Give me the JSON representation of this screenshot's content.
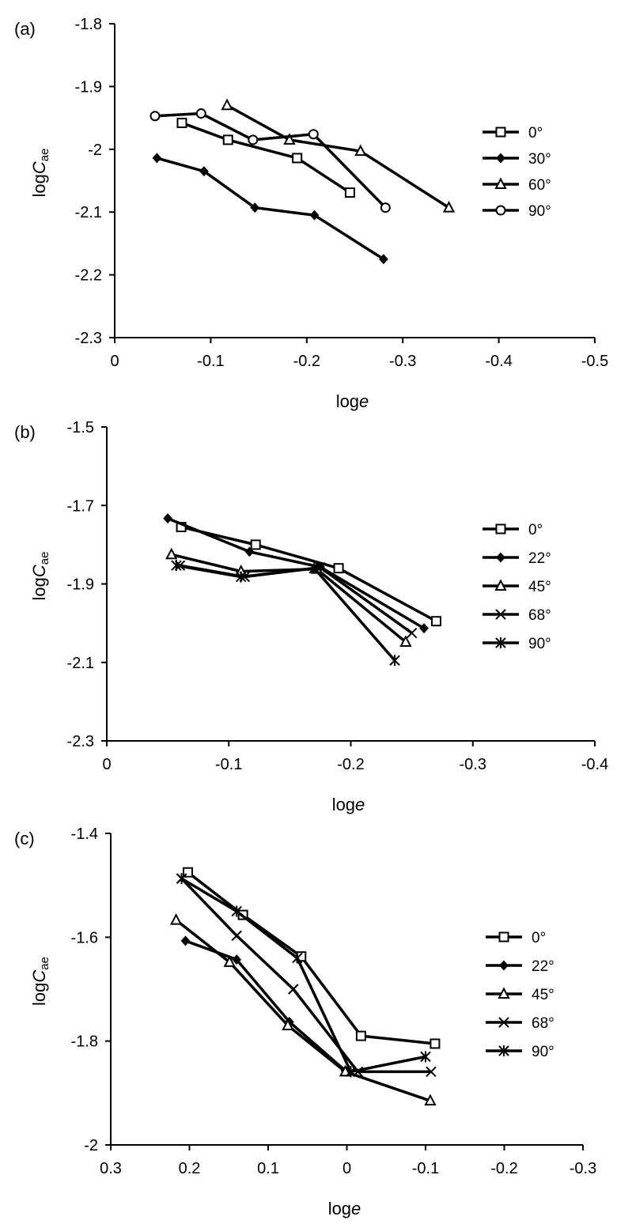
{
  "chart_data": [
    {
      "type": "line",
      "panel_label": "(a)",
      "xlabel": {
        "main": "log",
        "italic": "e"
      },
      "ylabel": {
        "main": "log",
        "italic": "C",
        "sub": "ae"
      },
      "xlim": [
        0,
        -0.5
      ],
      "ylim": [
        -2.3,
        -1.8
      ],
      "x_ticks": [
        0,
        -0.1,
        -0.2,
        -0.3,
        -0.4,
        -0.5
      ],
      "y_ticks": [
        -1.8,
        -1.9,
        -2,
        -2.1,
        -2.2,
        -2.3
      ],
      "x_tick_labels": [
        "0",
        "-0.1",
        "-0.2",
        "-0.3",
        "-0.4",
        "-0.5"
      ],
      "y_tick_labels": [
        "-1.8",
        "-1.9",
        "-2",
        "-2.1",
        "-2.2",
        "-2.3"
      ],
      "grid": false,
      "legend_position": "right",
      "series": [
        {
          "name": "0°",
          "marker": "square",
          "x": [
            -0.07,
            -0.118,
            -0.19,
            -0.245
          ],
          "y": [
            -1.958,
            -1.985,
            -2.014,
            -2.069
          ]
        },
        {
          "name": "30°",
          "marker": "diamond",
          "x": [
            -0.044,
            -0.093,
            -0.146,
            -0.208,
            -0.28
          ],
          "y": [
            -2.014,
            -2.035,
            -2.093,
            -2.105,
            -2.175
          ]
        },
        {
          "name": "60°",
          "marker": "triangle",
          "x": [
            -0.117,
            -0.182,
            -0.256,
            -0.348
          ],
          "y": [
            -1.93,
            -1.985,
            -2.003,
            -2.093
          ]
        },
        {
          "name": "90°",
          "marker": "circle",
          "x": [
            -0.042,
            -0.09,
            -0.144,
            -0.207,
            -0.282
          ],
          "y": [
            -1.947,
            -1.943,
            -1.985,
            -1.976,
            -2.093
          ]
        }
      ]
    },
    {
      "type": "line",
      "panel_label": "(b)",
      "xlabel": {
        "main": "log",
        "italic": "e"
      },
      "ylabel": {
        "main": "log",
        "italic": "C",
        "sub": "ae"
      },
      "xlim": [
        0,
        -0.4
      ],
      "ylim": [
        -2.3,
        -1.5
      ],
      "x_ticks": [
        0,
        -0.1,
        -0.2,
        -0.3,
        -0.4
      ],
      "y_ticks": [
        -1.5,
        -1.7,
        -1.9,
        -2.1,
        -2.3
      ],
      "x_tick_labels": [
        "0",
        "-0.1",
        "-0.2",
        "-0.3",
        "-0.4"
      ],
      "y_tick_labels": [
        "-1.5",
        "-1.7",
        "-1.9",
        "-2.1",
        "-2.3"
      ],
      "grid": false,
      "legend_position": "right",
      "series": [
        {
          "name": "0°",
          "marker": "square",
          "x": [
            -0.061,
            -0.122,
            -0.19,
            -0.27
          ],
          "y": [
            -1.755,
            -1.8,
            -1.86,
            -1.995
          ]
        },
        {
          "name": "22°",
          "marker": "diamond",
          "x": [
            -0.05,
            -0.117,
            -0.175,
            -0.26
          ],
          "y": [
            -1.733,
            -1.818,
            -1.857,
            -2.013
          ]
        },
        {
          "name": "45°",
          "marker": "triangle",
          "x": [
            -0.053,
            -0.11,
            -0.172,
            -0.245
          ],
          "y": [
            -1.825,
            -1.868,
            -1.862,
            -2.048
          ]
        },
        {
          "name": "68°",
          "marker": "x",
          "x": [
            -0.06,
            -0.113,
            -0.175,
            -0.25
          ],
          "y": [
            -1.853,
            -1.882,
            -1.858,
            -2.025
          ]
        },
        {
          "name": "90°",
          "marker": "star",
          "x": [
            -0.057,
            -0.11,
            -0.17,
            -0.236
          ],
          "y": [
            -1.853,
            -1.882,
            -1.86,
            -2.095
          ]
        }
      ]
    },
    {
      "type": "line",
      "panel_label": "(c)",
      "xlabel": {
        "main": "log",
        "italic": "e"
      },
      "ylabel": {
        "main": "log",
        "italic": "C",
        "sub": "ae"
      },
      "xlim": [
        0.3,
        -0.3
      ],
      "ylim": [
        -2,
        -1.4
      ],
      "x_ticks": [
        0.3,
        0.2,
        0.1,
        0,
        -0.1,
        -0.2,
        -0.3
      ],
      "y_ticks": [
        -1.4,
        -1.6,
        -1.8,
        -2
      ],
      "x_tick_labels": [
        "0.3",
        "0.2",
        "0.1",
        "0",
        "-0.1",
        "-0.2",
        "-0.3"
      ],
      "y_tick_labels": [
        "-1.4",
        "-1.6",
        "-1.8",
        "-2"
      ],
      "grid": false,
      "legend_position": "right",
      "series": [
        {
          "name": "0°",
          "marker": "square",
          "x": [
            0.202,
            0.132,
            0.058,
            -0.018,
            -0.112
          ],
          "y": [
            -1.475,
            -1.557,
            -1.637,
            -1.79,
            -1.805
          ]
        },
        {
          "name": "22°",
          "marker": "diamond",
          "x": [
            0.205,
            0.14,
            0.073,
            0.002
          ],
          "y": [
            -1.607,
            -1.643,
            -1.763,
            -1.857
          ]
        },
        {
          "name": "45°",
          "marker": "triangle",
          "x": [
            0.217,
            0.149,
            0.075,
            0.002,
            -0.106
          ],
          "y": [
            -1.567,
            -1.648,
            -1.77,
            -1.859,
            -1.915
          ]
        },
        {
          "name": "68°",
          "marker": "x",
          "x": [
            0.21,
            0.14,
            0.068,
            -0.014,
            -0.107
          ],
          "y": [
            -1.487,
            -1.597,
            -1.7,
            -1.859,
            -1.859
          ]
        },
        {
          "name": "90°",
          "marker": "star",
          "x": [
            0.21,
            0.14,
            0.063,
            -0.005,
            -0.1
          ],
          "y": [
            -1.487,
            -1.55,
            -1.64,
            -1.859,
            -1.83
          ]
        }
      ]
    }
  ]
}
